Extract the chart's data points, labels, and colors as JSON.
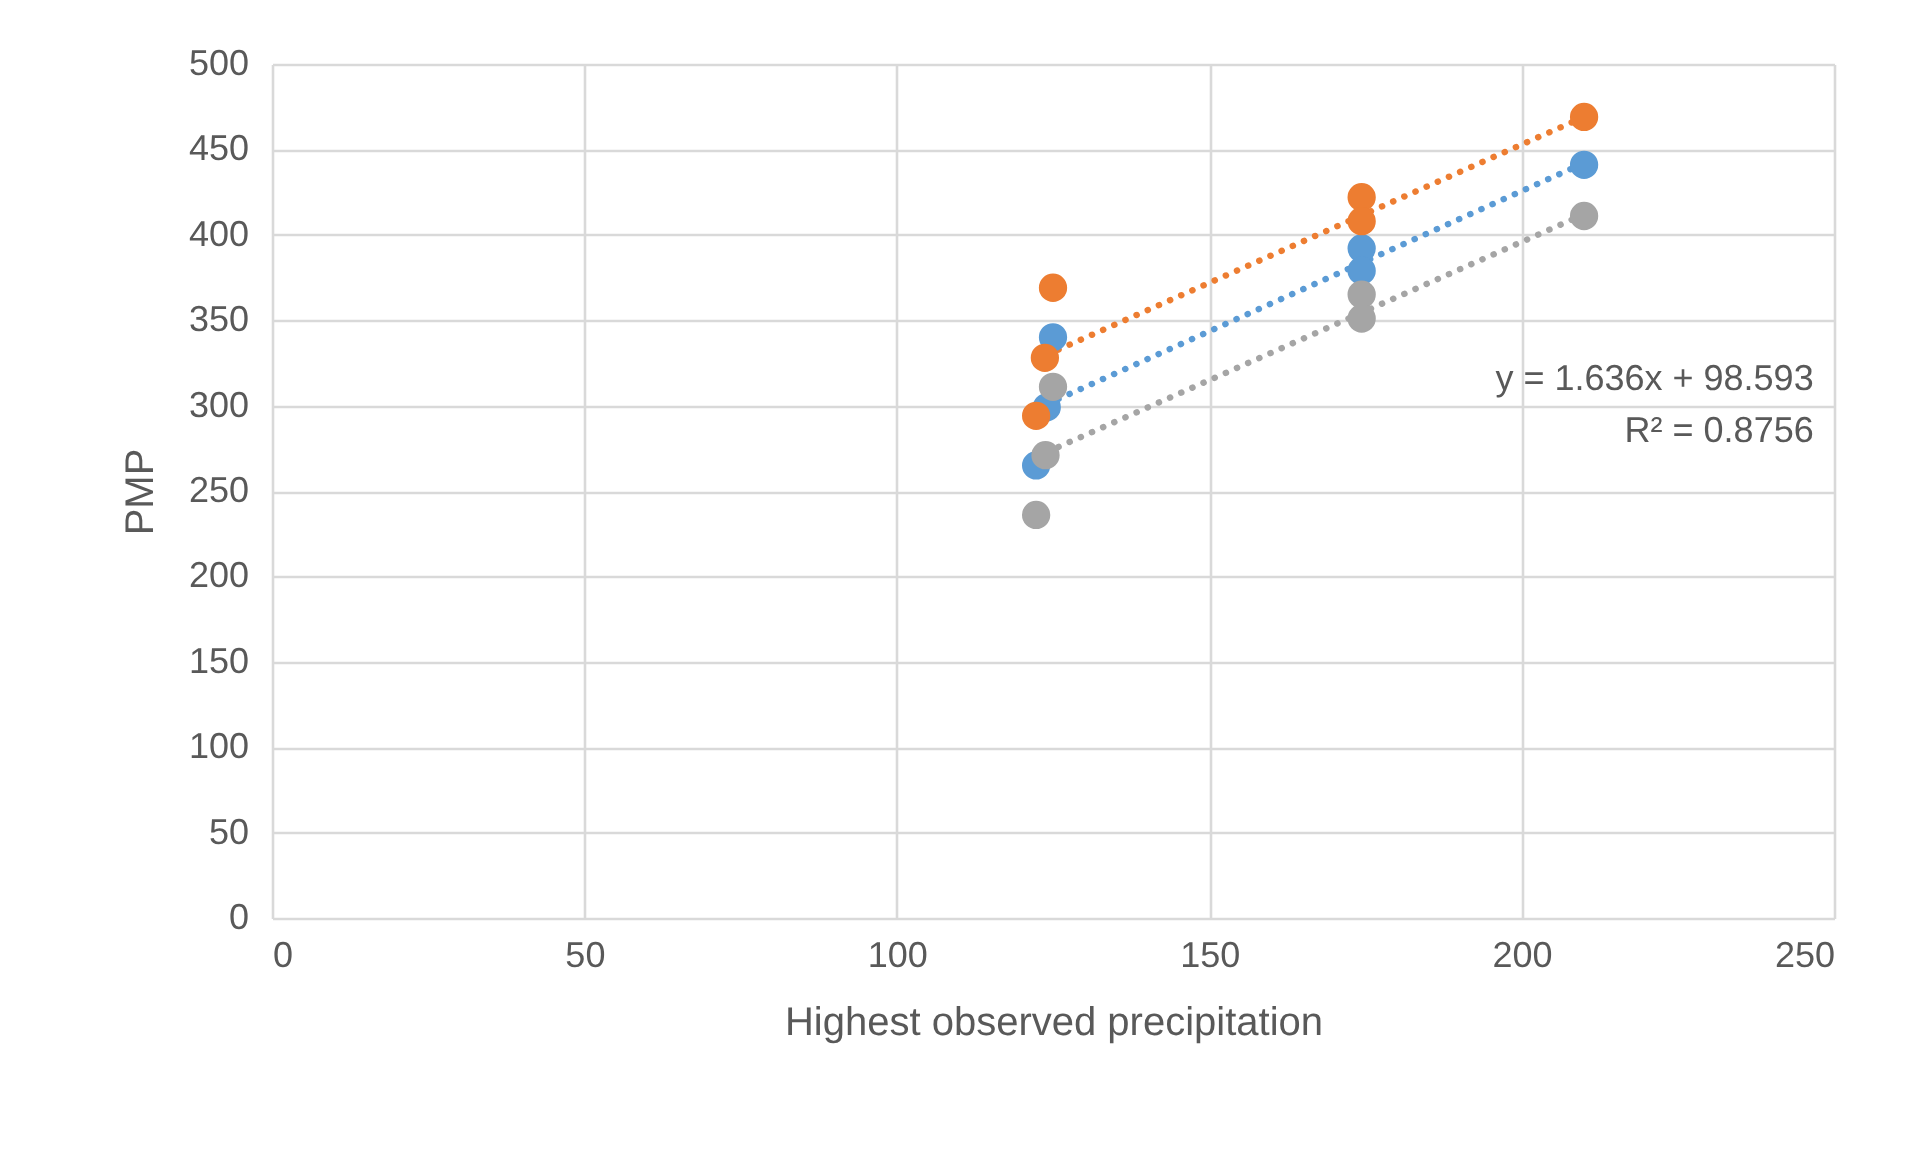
{
  "chart_data": {
    "type": "scatter",
    "xlabel": "Highest observed precipitation",
    "ylabel": "PMP",
    "xlim": [
      0,
      250
    ],
    "xticks": [
      0,
      50,
      100,
      150,
      200,
      250
    ],
    "ylim": [
      0,
      500
    ],
    "yticks": [
      0,
      50,
      100,
      150,
      200,
      250,
      300,
      350,
      400,
      450,
      500
    ],
    "grid": true,
    "marker": "circle",
    "annotations": [
      "y = 1.636x + 98.593",
      "R² = 0.8756"
    ],
    "series": [
      {
        "color": "#ed7d31",
        "type": "line",
        "line_style": "dotted",
        "marker": "none",
        "x": [
          122.3,
          210
        ],
        "values": [
          327,
          469
        ]
      },
      {
        "color": "#5b9bd5",
        "type": "line",
        "line_style": "dotted",
        "marker": "none",
        "x": [
          122.3,
          210
        ],
        "values": [
          298,
          442
        ]
      },
      {
        "color": "#a5a5a5",
        "type": "line",
        "line_style": "dotted",
        "marker": "none",
        "x": [
          122.3,
          210
        ],
        "values": [
          270,
          412
        ]
      },
      {
        "color": "#5b9bd5",
        "x": [
          122.3,
          124,
          125,
          174.4,
          174.4,
          210
        ],
        "values": [
          265,
          299,
          340,
          392,
          379,
          441
        ]
      },
      {
        "color": "#ed7d31",
        "x": [
          122.3,
          123.7,
          125,
          174.4,
          174.4,
          210
        ],
        "values": [
          294,
          328,
          369,
          422,
          408,
          469
        ]
      },
      {
        "color": "#a5a5a5",
        "x": [
          122.3,
          123.8,
          125,
          174.4,
          174.4,
          210
        ],
        "values": [
          236,
          271,
          311,
          365,
          351,
          411
        ]
      }
    ]
  }
}
